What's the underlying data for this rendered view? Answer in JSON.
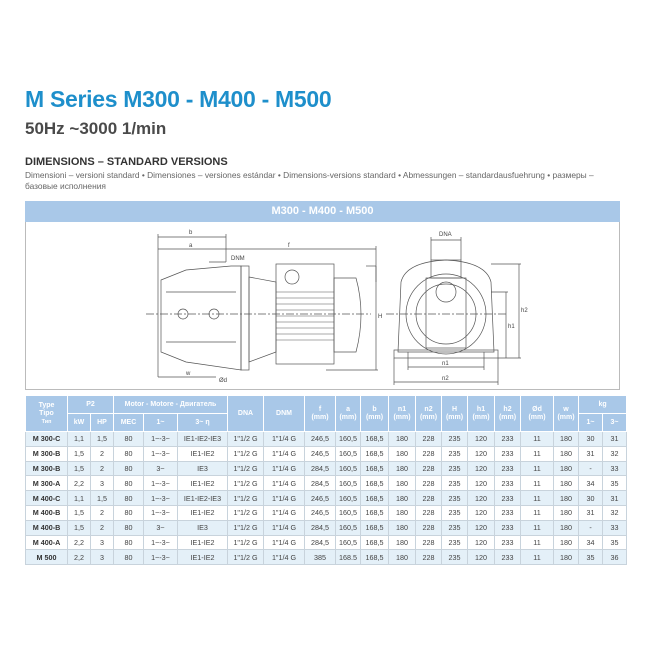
{
  "title": "M Series M300 - M400 - M500",
  "subtitle": "50Hz ~3000 1/min",
  "section_heading": "DIMENSIONS – STANDARD VERSIONS",
  "section_subtext": "Dimensioni – versioni standard • Dimensiones – versiones estándar • Dimensions-versions standard • Abmessungen – standardausfuehrung • размеры – базовые исполнения",
  "band_title": "M300 - M400 - M500",
  "diagram_labels": {
    "b": "b",
    "a": "a",
    "f": "f",
    "dnm": "DNM",
    "dna": "DNA",
    "h": "H",
    "h1": "h1",
    "h2": "h2",
    "w": "w",
    "od": "Ød",
    "n1": "n1",
    "n2": "n2"
  },
  "table": {
    "header": {
      "type": "Type",
      "tipo": "Tipo",
      "tip_ru": "Тип",
      "p2": "P2",
      "motor": "Motor - Motore - Двигатель",
      "kw": "kW",
      "hp": "HP",
      "mec": "MEC",
      "single": "1~",
      "three": "3~ η",
      "dna": "DNA",
      "dnm": "DNM",
      "kg": "kg",
      "kg1": "1~",
      "kg3": "3~",
      "dims": [
        [
          "f",
          "(mm)"
        ],
        [
          "a",
          "(mm)"
        ],
        [
          "b",
          "(mm)"
        ],
        [
          "n1",
          "(mm)"
        ],
        [
          "n2",
          "(mm)"
        ],
        [
          "H",
          "(mm)"
        ],
        [
          "h1",
          "(mm)"
        ],
        [
          "h2",
          "(mm)"
        ],
        [
          "Ød",
          "(mm)"
        ],
        [
          "w",
          "(mm)"
        ]
      ]
    },
    "rows": [
      [
        "M 300-C",
        "1,1",
        "1,5",
        "80",
        "1~-3~",
        "IE1-IE2-IE3",
        "1\"1/2 G",
        "1\"1/4 G",
        "246,5",
        "160,5",
        "168,5",
        "180",
        "228",
        "235",
        "120",
        "233",
        "11",
        "180",
        "30",
        "31"
      ],
      [
        "M 300-B",
        "1,5",
        "2",
        "80",
        "1~-3~",
        "IE1-IE2",
        "1\"1/2 G",
        "1\"1/4 G",
        "246,5",
        "160,5",
        "168,5",
        "180",
        "228",
        "235",
        "120",
        "233",
        "11",
        "180",
        "31",
        "32"
      ],
      [
        "M 300-B",
        "1,5",
        "2",
        "80",
        "3~",
        "IE3",
        "1\"1/2 G",
        "1\"1/4 G",
        "284,5",
        "160,5",
        "168,5",
        "180",
        "228",
        "235",
        "120",
        "233",
        "11",
        "180",
        "-",
        "33"
      ],
      [
        "M 300-A",
        "2,2",
        "3",
        "80",
        "1~-3~",
        "IE1-IE2",
        "1\"1/2 G",
        "1\"1/4 G",
        "284,5",
        "160,5",
        "168,5",
        "180",
        "228",
        "235",
        "120",
        "233",
        "11",
        "180",
        "34",
        "35"
      ],
      [
        "M 400-C",
        "1,1",
        "1,5",
        "80",
        "1~-3~",
        "IE1-IE2-IE3",
        "1\"1/2 G",
        "1\"1/4 G",
        "246,5",
        "160,5",
        "168,5",
        "180",
        "228",
        "235",
        "120",
        "233",
        "11",
        "180",
        "30",
        "31"
      ],
      [
        "M 400-B",
        "1,5",
        "2",
        "80",
        "1~-3~",
        "IE1-IE2",
        "1\"1/2 G",
        "1\"1/4 G",
        "246,5",
        "160,5",
        "168,5",
        "180",
        "228",
        "235",
        "120",
        "233",
        "11",
        "180",
        "31",
        "32"
      ],
      [
        "M 400-B",
        "1,5",
        "2",
        "80",
        "3~",
        "IE3",
        "1\"1/2 G",
        "1\"1/4 G",
        "284,5",
        "160,5",
        "168,5",
        "180",
        "228",
        "235",
        "120",
        "233",
        "11",
        "180",
        "-",
        "33"
      ],
      [
        "M 400-A",
        "2,2",
        "3",
        "80",
        "1~-3~",
        "IE1-IE2",
        "1\"1/2 G",
        "1\"1/4 G",
        "284,5",
        "160,5",
        "168,5",
        "180",
        "228",
        "235",
        "120",
        "233",
        "11",
        "180",
        "34",
        "35"
      ],
      [
        "M 500",
        "2,2",
        "3",
        "80",
        "1~-3~",
        "IE1-IE2",
        "1\"1/2 G",
        "1\"1/4 G",
        "385",
        "168.5",
        "168,5",
        "180",
        "228",
        "235",
        "120",
        "233",
        "11",
        "180",
        "35",
        "36"
      ]
    ]
  },
  "colors": {
    "title": "#1e8fcb",
    "header": "#a9c8e8",
    "row_alt": "#e4f0f8"
  }
}
